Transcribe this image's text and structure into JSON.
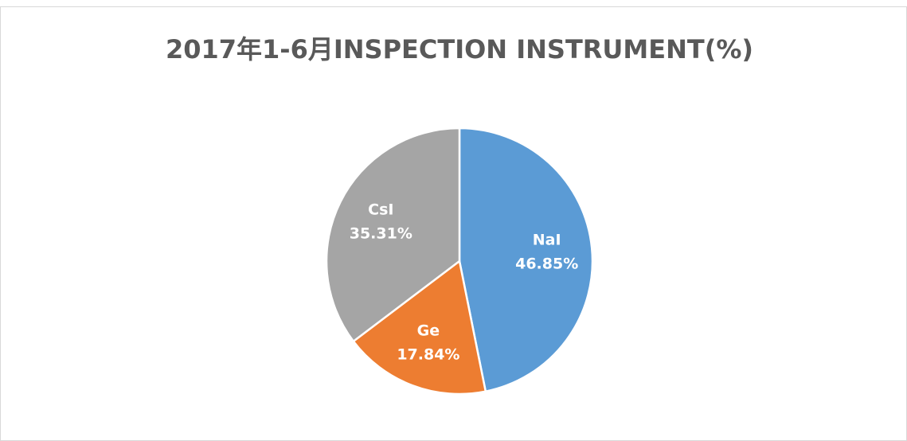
{
  "chart_data": {
    "type": "pie",
    "title": "2017年1-6月INSPECTION INSTRUMENT(%)",
    "categories": [
      "NaI",
      "Ge",
      "CsI"
    ],
    "values": [
      46.85,
      17.84,
      35.31
    ],
    "value_labels": [
      "46.85%",
      "17.84%",
      "35.31%"
    ],
    "colors": [
      "#5b9bd5",
      "#ed7d31",
      "#a5a5a5"
    ]
  }
}
